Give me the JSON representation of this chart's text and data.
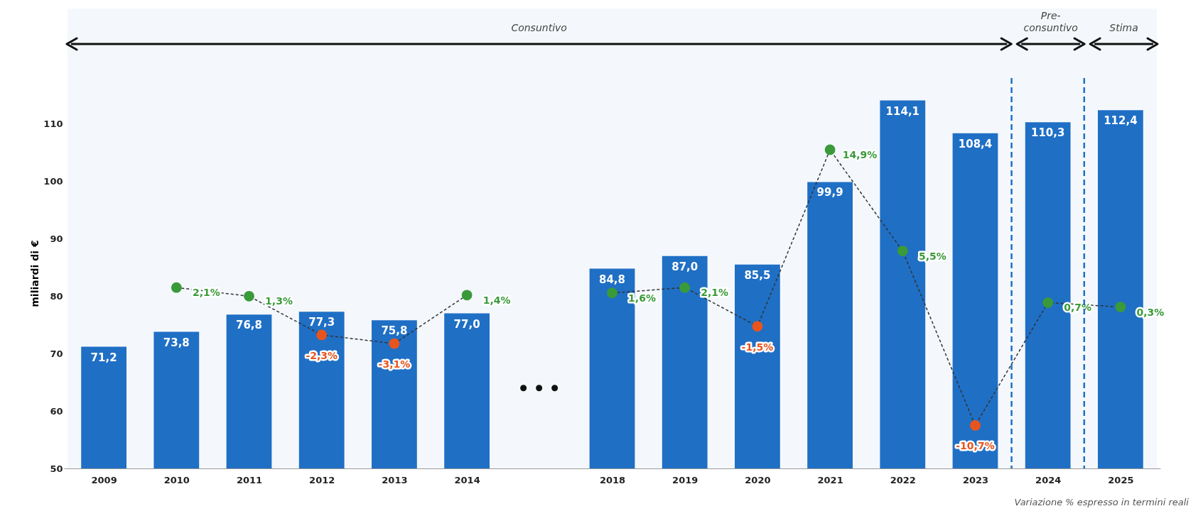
{
  "chart_data": {
    "type": "bar",
    "ylabel": "miliardi di €",
    "categories": [
      "2009",
      "2010",
      "2011",
      "2012",
      "2013",
      "2014",
      null,
      "2018",
      "2019",
      "2020",
      "2021",
      "2022",
      "2023",
      "2024",
      "2025"
    ],
    "series": [
      {
        "color": "#1f6fc5",
        "values": [
          71.2,
          73.8,
          76.8,
          77.3,
          75.8,
          77.0,
          null,
          84.8,
          87.0,
          85.5,
          99.9,
          114.1,
          108.4,
          110.3,
          112.4
        ],
        "value_labels": [
          "71,2",
          "73,8",
          "76,8",
          "77,3",
          "75,8",
          "77,0",
          null,
          "84,8",
          "87,0",
          "85,5",
          "99,9",
          "114,1",
          "108,4",
          "110,3",
          "112,4"
        ]
      },
      {
        "type": "line",
        "axis": "y2",
        "color": "#333333",
        "colors": [
          null,
          "#3a9a3a",
          "#3a9a3a",
          "#e8541e",
          "#e8541e",
          "#3a9a3a",
          null,
          "#3a9a3a",
          "#3a9a3a",
          "#e8541e",
          "#3a9a3a",
          "#3a9a3a",
          "#e8541e",
          "#3a9a3a",
          "#3a9a3a"
        ],
        "values": [
          null,
          2.1,
          1.3,
          -2.3,
          -3.1,
          1.4,
          null,
          1.6,
          2.1,
          -1.5,
          14.9,
          5.5,
          -10.7,
          0.7,
          0.3
        ],
        "value_labels": [
          null,
          "2,1%",
          "1,3%",
          "-2,3%",
          "-3,1%",
          "1,4%",
          null,
          "1,6%",
          "2,1%",
          "-1,5%",
          "14,9%",
          "5,5%",
          "-10,7%",
          "0,7%",
          "0,3%"
        ]
      }
    ],
    "ylim": [
      50,
      118
    ],
    "yticks": [
      50,
      60,
      70,
      80,
      90,
      100,
      110
    ],
    "marker": "circle",
    "line_style": "dashed",
    "grid": false,
    "bands": [
      {
        "axis": "x",
        "from": "2009",
        "to": "2023",
        "label": "Consuntivo"
      },
      {
        "axis": "x",
        "from": "2024",
        "to": "2024",
        "label": "Pre-\nconsuntivo",
        "color": "#1f6fc5"
      },
      {
        "axis": "x",
        "from": "2025",
        "to": "2025",
        "label": "Stima",
        "color": "#1f6fc5"
      }
    ],
    "annotations": [
      "Variazione % espresso in termini reali"
    ]
  }
}
